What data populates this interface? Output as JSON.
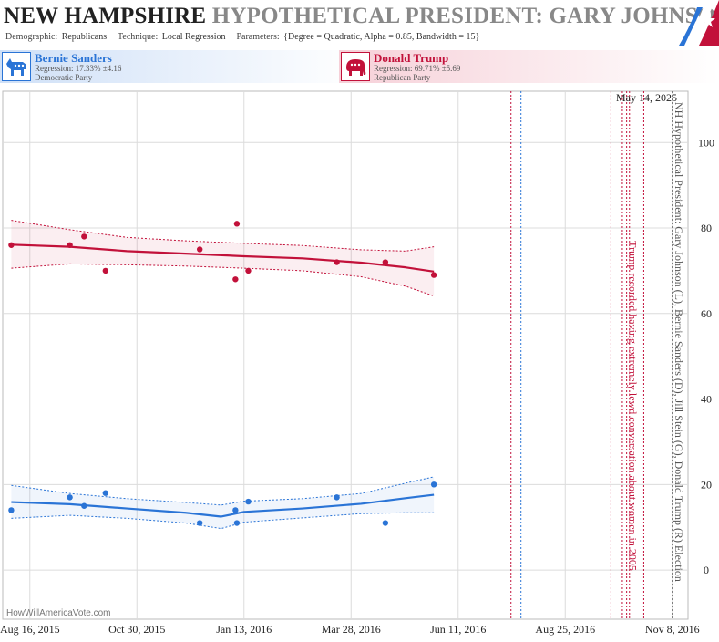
{
  "header": {
    "state": "NEW HAMPSHIRE",
    "title_rest": "HYPOTHETICAL PRESIDENT: GARY JOHNSON",
    "demographic_label": "Demographic:",
    "demographic_value": "Republicans",
    "technique_label": "Technique:",
    "technique_value": "Local Regression",
    "parameters_label": "Parameters:",
    "parameters_value": "{Degree = Quadratic, Alpha = 0.85, Bandwidth = 15}"
  },
  "candidates": [
    {
      "name": "Bernie Sanders",
      "regression": "Regression: 17.33% ±4.16",
      "party": "Democratic Party",
      "color": "#2a74d6"
    },
    {
      "name": "Donald Trump",
      "regression": "Regression: 69.71% ±5.69",
      "party": "Republican Party",
      "color": "#c2113a"
    }
  ],
  "watermark": "HowWillAmericaVote.com",
  "chart_data": {
    "type": "scatter",
    "title": "NEW HAMPSHIRE HYPOTHETICAL PRESIDENT: GARY JOHNSON",
    "x_type": "date",
    "xlim": [
      "2015-07-28",
      "2016-11-19"
    ],
    "ylim": [
      -11.5,
      112
    ],
    "x_ticks": [
      {
        "date": "2015-08-16",
        "label": "Aug 16, 2015"
      },
      {
        "date": "2015-10-30",
        "label": "Oct 30, 2015"
      },
      {
        "date": "2016-01-13",
        "label": "Jan 13, 2016"
      },
      {
        "date": "2016-03-28",
        "label": "Mar 28, 2016"
      },
      {
        "date": "2016-06-11",
        "label": "Jun 11, 2016"
      },
      {
        "date": "2016-08-25",
        "label": "Aug 25, 2016"
      },
      {
        "date": "2016-11-08",
        "label": "Nov 8, 2016"
      }
    ],
    "y_ticks": [
      0,
      20,
      40,
      60,
      80,
      100
    ],
    "grid": true,
    "series": [
      {
        "name": "Donald Trump",
        "color": "#c2113a",
        "points": [
          {
            "x": "2015-08-03",
            "y": 76
          },
          {
            "x": "2015-09-13",
            "y": 76
          },
          {
            "x": "2015-09-23",
            "y": 78
          },
          {
            "x": "2015-10-08",
            "y": 70
          },
          {
            "x": "2015-12-13",
            "y": 75
          },
          {
            "x": "2016-01-07",
            "y": 68
          },
          {
            "x": "2016-01-08",
            "y": 81
          },
          {
            "x": "2016-01-16",
            "y": 70
          },
          {
            "x": "2016-03-18",
            "y": 72
          },
          {
            "x": "2016-04-21",
            "y": 72
          },
          {
            "x": "2016-05-25",
            "y": 69
          }
        ],
        "trend": [
          {
            "x": "2015-08-03",
            "y": 76.1,
            "lo": 70.6,
            "hi": 81.8
          },
          {
            "x": "2015-09-13",
            "y": 75.6,
            "lo": 71.6,
            "hi": 79.6
          },
          {
            "x": "2015-10-23",
            "y": 74.6,
            "lo": 71.4,
            "hi": 77.8
          },
          {
            "x": "2015-12-03",
            "y": 74.0,
            "lo": 71.1,
            "hi": 77.0
          },
          {
            "x": "2016-01-13",
            "y": 73.4,
            "lo": 70.6,
            "hi": 76.4
          },
          {
            "x": "2016-02-23",
            "y": 72.9,
            "lo": 70.0,
            "hi": 75.9
          },
          {
            "x": "2016-04-04",
            "y": 71.9,
            "lo": 68.6,
            "hi": 74.9
          },
          {
            "x": "2016-05-05",
            "y": 70.8,
            "lo": 66.4,
            "hi": 74.6
          },
          {
            "x": "2016-05-25",
            "y": 69.8,
            "lo": 64.1,
            "hi": 75.6
          }
        ]
      },
      {
        "name": "Bernie Sanders",
        "color": "#2a74d6",
        "points": [
          {
            "x": "2015-08-03",
            "y": 14
          },
          {
            "x": "2015-09-13",
            "y": 17
          },
          {
            "x": "2015-09-23",
            "y": 15
          },
          {
            "x": "2015-10-08",
            "y": 18
          },
          {
            "x": "2015-12-13",
            "y": 11
          },
          {
            "x": "2016-01-07",
            "y": 14
          },
          {
            "x": "2016-01-08",
            "y": 11
          },
          {
            "x": "2016-01-16",
            "y": 16
          },
          {
            "x": "2016-03-18",
            "y": 17
          },
          {
            "x": "2016-04-21",
            "y": 11
          },
          {
            "x": "2016-05-25",
            "y": 20
          }
        ],
        "trend": [
          {
            "x": "2015-08-03",
            "y": 15.9,
            "lo": 12.1,
            "hi": 19.8
          },
          {
            "x": "2015-09-13",
            "y": 15.4,
            "lo": 12.8,
            "hi": 17.9
          },
          {
            "x": "2015-10-23",
            "y": 14.4,
            "lo": 12.1,
            "hi": 16.7
          },
          {
            "x": "2015-12-03",
            "y": 13.4,
            "lo": 11.0,
            "hi": 15.8
          },
          {
            "x": "2015-12-28",
            "y": 12.5,
            "lo": 9.7,
            "hi": 15.2
          },
          {
            "x": "2016-01-13",
            "y": 13.6,
            "lo": 11.2,
            "hi": 16.1
          },
          {
            "x": "2016-02-23",
            "y": 14.4,
            "lo": 12.2,
            "hi": 16.7
          },
          {
            "x": "2016-04-04",
            "y": 15.5,
            "lo": 13.2,
            "hi": 17.9
          },
          {
            "x": "2016-05-05",
            "y": 16.8,
            "lo": 13.4,
            "hi": 20.3
          },
          {
            "x": "2016-05-25",
            "y": 17.6,
            "lo": 13.4,
            "hi": 21.8
          }
        ]
      }
    ],
    "events": [
      {
        "date": "2016-07-18",
        "color": "#c2113a",
        "style": "dotted",
        "label": ""
      },
      {
        "date": "2016-07-25",
        "color": "#2a74d6",
        "style": "dotted",
        "label": ""
      },
      {
        "date": "2016-09-26",
        "color": "#c2113a",
        "style": "dotted",
        "label": ""
      },
      {
        "date": "2016-10-04",
        "color": "#c2113a",
        "style": "dotted",
        "label": ""
      },
      {
        "date": "2016-10-07",
        "color": "#c2113a",
        "style": "dotted",
        "label": "Trump recorded having extremely lewd conversation about women in 2005"
      },
      {
        "date": "2016-10-09",
        "color": "#c2113a",
        "style": "dotted",
        "label": ""
      },
      {
        "date": "2016-10-19",
        "color": "#c2113a",
        "style": "dotted",
        "label": ""
      },
      {
        "date": "2016-11-08",
        "color": "#555555",
        "style": "dotted",
        "label": "NH Hypothetical President: Gary Johnson (L), Bernie Sanders (D), Jill Stein (G), Donald Trump (R) Election"
      }
    ],
    "date_annotation": "May 14, 2025"
  }
}
